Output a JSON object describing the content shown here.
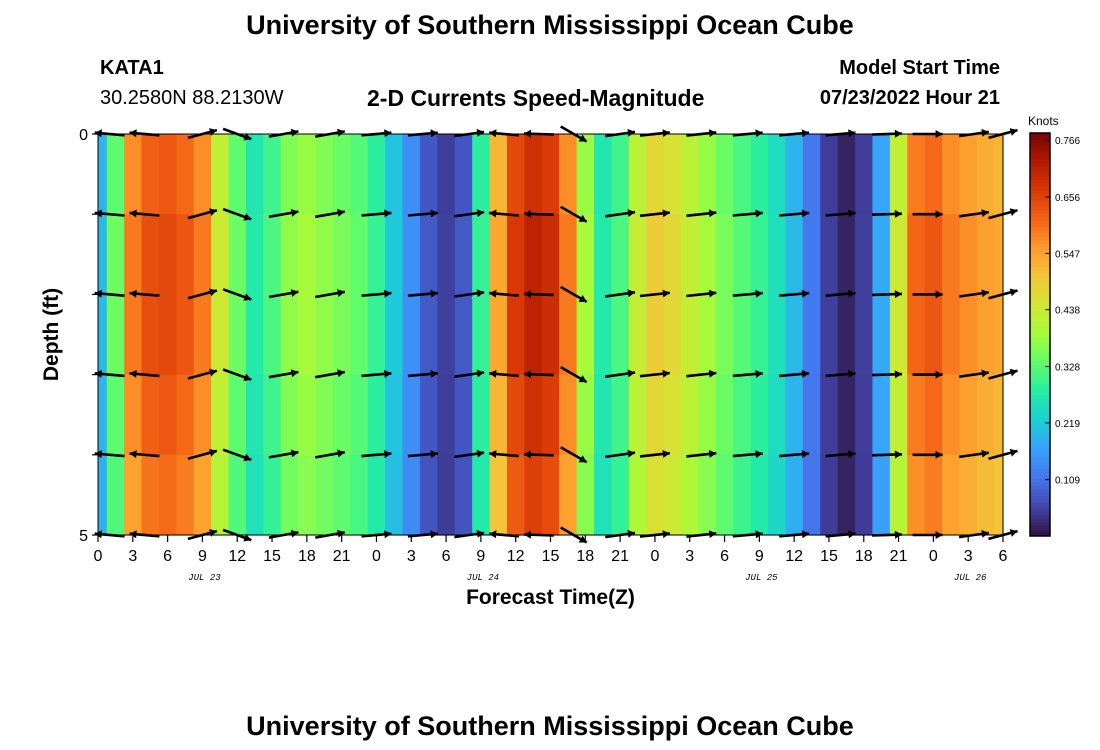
{
  "header": {
    "title": "University of Southern Mississippi Ocean Cube",
    "station": "KATA1",
    "coordinates": "30.2580N  88.2130W",
    "subtitle": "2-D Currents Speed-Magnitude",
    "model_start_label": "Model Start Time",
    "model_start_value": "07/23/2022 Hour 21"
  },
  "footer": {
    "title": "University of Southern Mississippi Ocean Cube"
  },
  "chart_data": {
    "type": "heatmap",
    "xlabel": "Forecast Time(Z)",
    "ylabel": "Depth (ft)",
    "x_tick_labels": [
      "0",
      "3",
      "6",
      "9",
      "12",
      "15",
      "18",
      "21",
      "0",
      "3",
      "6",
      "9",
      "12",
      "15",
      "18",
      "21",
      "0",
      "3",
      "6",
      "9",
      "12",
      "15",
      "18",
      "21",
      "0",
      "3",
      "6"
    ],
    "date_labels": [
      "JUL 23",
      "JUL 24",
      "JUL 25",
      "JUL 26"
    ],
    "date_label_tick_index": [
      4,
      12,
      20,
      26
    ],
    "y_tick_labels": [
      "0",
      "5"
    ],
    "ylim": [
      0,
      5
    ],
    "colorbar": {
      "label": "Knots",
      "ticks": [
        "0.766",
        "0.656",
        "0.547",
        "0.438",
        "0.328",
        "0.219",
        "0.109"
      ],
      "tick_values": [
        0.766,
        0.656,
        0.547,
        0.438,
        0.328,
        0.219,
        0.109
      ],
      "range": [
        0.0,
        0.78
      ],
      "colors": [
        "#30123b",
        "#4145ab",
        "#4675ed",
        "#39a2fc",
        "#1bcfd4",
        "#24eca6",
        "#61fc6c",
        "#a4fc3b",
        "#d1e834",
        "#f3c63a",
        "#fe9b2d",
        "#f36315",
        "#d93806",
        "#b11901",
        "#7a0402"
      ]
    },
    "time_hours": [
      0,
      1.5,
      3,
      4.5,
      6,
      7.5,
      9,
      10.5,
      12,
      13.5,
      15,
      16.5,
      18,
      19.5,
      21,
      22.5,
      24,
      25.5,
      27,
      28.5,
      30,
      31.5,
      33,
      34.5,
      36,
      37.5,
      39,
      40.5,
      42,
      43.5,
      45,
      46.5,
      48,
      49.5,
      51,
      52.5,
      54,
      55.5,
      57,
      58.5,
      60,
      61.5,
      63,
      64.5,
      66,
      67.5,
      69,
      70.5,
      72,
      73.5,
      75,
      76.5,
      78
    ],
    "speed_knots": [
      0.2,
      0.35,
      0.6,
      0.65,
      0.66,
      0.64,
      0.6,
      0.45,
      0.35,
      0.28,
      0.32,
      0.38,
      0.4,
      0.38,
      0.36,
      0.34,
      0.3,
      0.22,
      0.15,
      0.08,
      0.05,
      0.08,
      0.3,
      0.55,
      0.68,
      0.72,
      0.7,
      0.6,
      0.4,
      0.28,
      0.32,
      0.44,
      0.5,
      0.48,
      0.44,
      0.4,
      0.36,
      0.33,
      0.3,
      0.26,
      0.2,
      0.12,
      0.05,
      0.02,
      0.05,
      0.18,
      0.45,
      0.62,
      0.64,
      0.6,
      0.58,
      0.56,
      0.55
    ],
    "arrow_depths_ft": [
      0,
      1,
      2,
      3,
      4,
      5
    ],
    "arrow_times_hours": [
      1,
      4,
      9,
      12,
      16,
      20,
      24,
      28,
      32,
      35,
      38,
      41,
      45,
      48,
      52,
      56,
      60,
      64,
      68,
      71.5,
      75.5,
      78
    ],
    "arrow_directions_deg": [
      175,
      175,
      15,
      -20,
      10,
      10,
      5,
      5,
      8,
      175,
      178,
      -30,
      8,
      6,
      6,
      5,
      5,
      5,
      2,
      0,
      8,
      15
    ]
  }
}
